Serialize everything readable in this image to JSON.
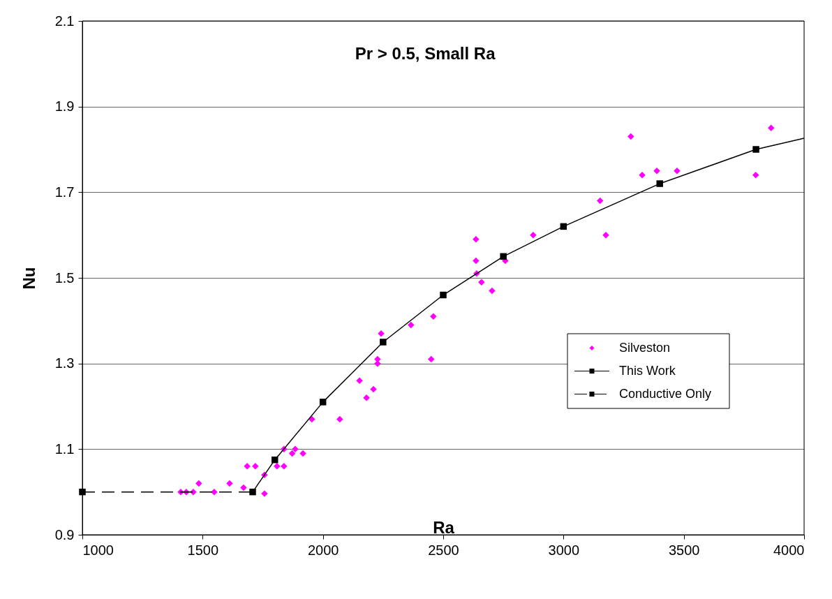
{
  "chart_data": {
    "type": "scatter",
    "title": "Pr > 0.5, Small Ra",
    "xlabel": "Ra",
    "ylabel": "Nu",
    "xlim": [
      1000,
      4000
    ],
    "xticks": [
      1000,
      1500,
      2000,
      2500,
      3000,
      3500,
      4000
    ],
    "ylim": [
      0.9,
      2.1
    ],
    "yticks": [
      0.9,
      1.1,
      1.3,
      1.5,
      1.7,
      1.9,
      2.1
    ],
    "grid": "y",
    "legend": "right",
    "series": [
      {
        "name": "Silveston",
        "type": "scatter",
        "marker": "diamond",
        "color": "#ff00ff",
        "x": [
          1409,
          1432,
          1461,
          1484,
          1548,
          1612,
          1670,
          1685,
          1719,
          1757,
          1757,
          1809,
          1838,
          1838,
          1872,
          1885,
          1917,
          1954,
          2070,
          2152,
          2181,
          2210,
          2227,
          2227,
          2242,
          2366,
          2450,
          2459,
          2636,
          2636,
          2639,
          2659,
          2703,
          2758,
          2874,
          3152,
          3176,
          3280,
          3327,
          3388,
          3472,
          3799,
          3863
        ],
        "values": [
          1.0,
          1.0,
          1.0,
          1.02,
          1.0,
          1.02,
          1.01,
          1.06,
          1.06,
          0.996,
          1.04,
          1.06,
          1.06,
          1.1,
          1.09,
          1.1,
          1.09,
          1.17,
          1.17,
          1.26,
          1.22,
          1.24,
          1.3,
          1.31,
          1.37,
          1.39,
          1.31,
          1.41,
          1.59,
          1.54,
          1.51,
          1.49,
          1.47,
          1.54,
          1.6,
          1.68,
          1.6,
          1.83,
          1.74,
          1.75,
          1.75,
          1.74,
          1.85
        ]
      },
      {
        "name": "This Work",
        "type": "line",
        "marker": "square",
        "line_style": "solid",
        "color": "#000000",
        "x": [
          1708,
          1800,
          2000,
          2250,
          2500,
          2750,
          3000,
          3400,
          3800
        ],
        "values": [
          1.0,
          1.075,
          1.21,
          1.35,
          1.46,
          1.55,
          1.62,
          1.72,
          1.8
        ]
      },
      {
        "type": "line",
        "marker": "none",
        "line_style": "solid",
        "color": "#000000",
        "x": [
          3800,
          4000
        ],
        "values": [
          1.8,
          1.826
        ]
      },
      {
        "name": "Conductive Only",
        "type": "line",
        "marker": "square",
        "line_style": "dashed",
        "color": "#000000",
        "x": [
          1000
        ],
        "values": [
          1.0
        ]
      },
      {
        "type": "line",
        "marker": "none",
        "line_style": "dashed",
        "color": "#000000",
        "x": [
          1000,
          1708
        ],
        "values": [
          1.0,
          1.0
        ]
      }
    ]
  }
}
